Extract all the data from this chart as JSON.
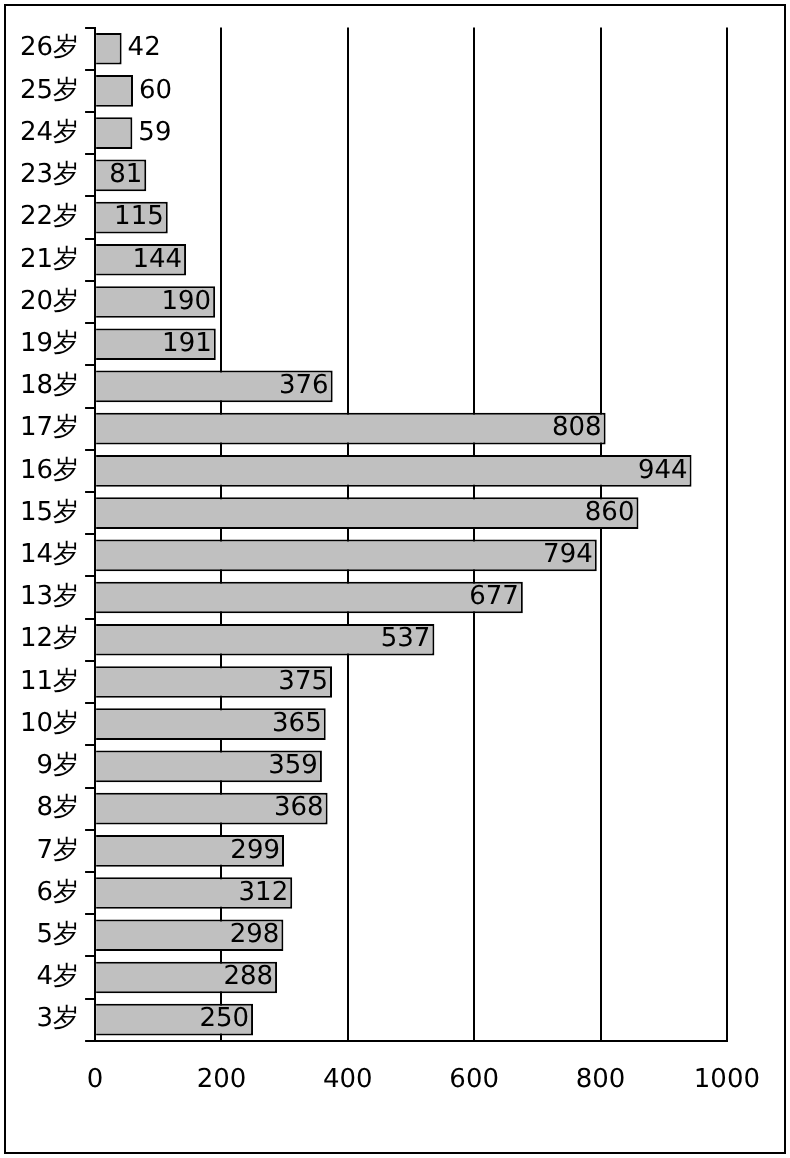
{
  "chart_data": {
    "type": "bar",
    "orientation": "horizontal",
    "categories": [
      "26岁",
      "25岁",
      "24岁",
      "23岁",
      "22岁",
      "21岁",
      "20岁",
      "19岁",
      "18岁",
      "17岁",
      "16岁",
      "15岁",
      "14岁",
      "13岁",
      "12岁",
      "11岁",
      "10岁",
      "9岁",
      "8岁",
      "7岁",
      "6岁",
      "5岁",
      "4岁",
      "3岁"
    ],
    "values": [
      42,
      60,
      59,
      81,
      115,
      144,
      190,
      191,
      376,
      808,
      944,
      860,
      794,
      677,
      537,
      375,
      365,
      359,
      368,
      299,
      312,
      298,
      288,
      250
    ],
    "color": "#c0c0c0",
    "xlim": [
      0,
      1000
    ],
    "xticks": [
      0,
      200,
      400,
      600,
      800,
      1000
    ],
    "grid": "x",
    "data_labels": true,
    "legend": false
  }
}
